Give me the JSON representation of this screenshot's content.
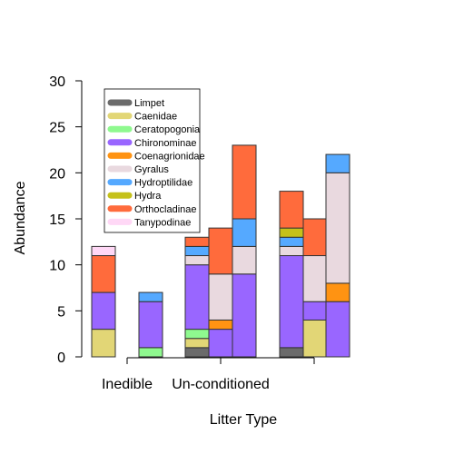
{
  "chart_data": {
    "type": "bar",
    "stacked": true,
    "title": "",
    "xlabel": "Litter Type",
    "ylabel": "Abundance",
    "ylim": [
      0,
      30
    ],
    "yticks": [
      0,
      5,
      10,
      15,
      20,
      25,
      30
    ],
    "group_labels": [
      "Inedible",
      "Un-conditioned",
      ""
    ],
    "legend_position": "top-left",
    "grid": false,
    "series": [
      {
        "name": "Limpet",
        "color": "#6b6b6b",
        "values": [
          0,
          0,
          1,
          0,
          0,
          1,
          0,
          0
        ]
      },
      {
        "name": "Caenidae",
        "color": "#e2d676",
        "values": [
          3,
          0,
          1,
          0,
          0,
          0,
          4,
          0
        ]
      },
      {
        "name": "Ceratopogonia",
        "color": "#8ff98f",
        "values": [
          0,
          1,
          1,
          0,
          0,
          0,
          0,
          0
        ]
      },
      {
        "name": "Chironominae",
        "color": "#9966ff",
        "values": [
          4,
          5,
          7,
          3,
          9,
          10,
          2,
          6
        ]
      },
      {
        "name": "Coenagrionidae",
        "color": "#ff9312",
        "values": [
          0,
          0,
          0,
          1,
          0,
          0,
          0,
          2
        ]
      },
      {
        "name": "Gyralus",
        "color": "#e9d9df",
        "values": [
          0,
          0,
          1,
          5,
          3,
          1,
          5,
          12
        ]
      },
      {
        "name": "Hydroptilidae",
        "color": "#55a9ff",
        "values": [
          0,
          1,
          1,
          0,
          3,
          1,
          0,
          2
        ]
      },
      {
        "name": "Hydra",
        "color": "#c5c11a",
        "values": [
          0,
          0,
          0,
          0,
          0,
          1,
          0,
          0
        ]
      },
      {
        "name": "Orthocladinae",
        "color": "#ff6b3c",
        "values": [
          4,
          0,
          1,
          5,
          8,
          4,
          4,
          0
        ]
      },
      {
        "name": "Tanypodinae",
        "color": "#ffd8f6",
        "values": [
          1,
          0,
          0,
          0,
          0,
          0,
          0,
          0
        ]
      }
    ]
  }
}
